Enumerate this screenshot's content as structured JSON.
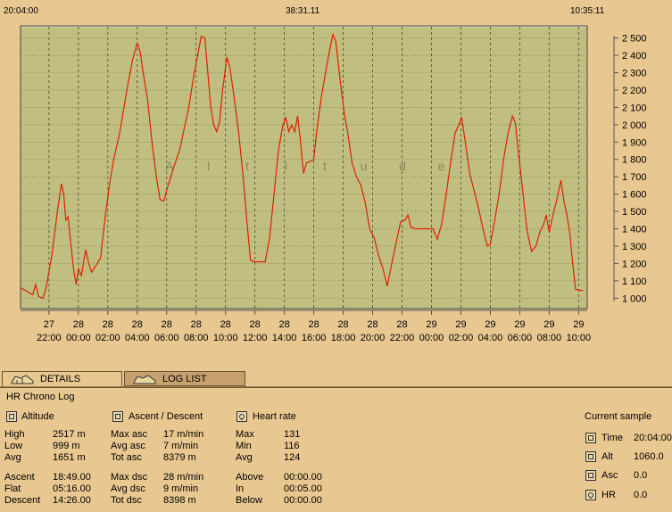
{
  "top_times": {
    "left": "20:04:00",
    "center": "38:31.11",
    "right": "10:35:11"
  },
  "chart_data": {
    "type": "line",
    "title": "Altitude",
    "y_ticks": [
      1000,
      1100,
      1200,
      1300,
      1400,
      1500,
      1600,
      1700,
      1800,
      1900,
      2000,
      2100,
      2200,
      2300,
      2400,
      2500
    ],
    "y_tick_labels": [
      "1 000",
      "1 100",
      "1 200",
      "1 300",
      "1 400",
      "1 500",
      "1 600",
      "1 700",
      "1 800",
      "1 900",
      "2 000",
      "2 100",
      "2 200",
      "2 300",
      "2 400",
      "2 500"
    ],
    "ylim": [
      940,
      2570
    ],
    "xlim": [
      21.75,
      10.58
    ],
    "x_ticks": [
      {
        "t": 22,
        "day": "27",
        "time": "22:00"
      },
      {
        "t": 24,
        "day": "28",
        "time": "00:00"
      },
      {
        "t": 26,
        "day": "28",
        "time": "02:00"
      },
      {
        "t": 28,
        "day": "28",
        "time": "04:00"
      },
      {
        "t": 30,
        "day": "28",
        "time": "06:00"
      },
      {
        "t": 32,
        "day": "28",
        "time": "08:00"
      },
      {
        "t": 34,
        "day": "28",
        "time": "10:00"
      },
      {
        "t": 36,
        "day": "28",
        "time": "12:00"
      },
      {
        "t": 38,
        "day": "28",
        "time": "14:00"
      },
      {
        "t": 40,
        "day": "28",
        "time": "16:00"
      },
      {
        "t": 42,
        "day": "28",
        "time": "18:00"
      },
      {
        "t": 44,
        "day": "28",
        "time": "20:00"
      },
      {
        "t": 46,
        "day": "28",
        "time": "22:00"
      },
      {
        "t": 48,
        "day": "29",
        "time": "00:00"
      },
      {
        "t": 50,
        "day": "29",
        "time": "02:00"
      },
      {
        "t": 52,
        "day": "29",
        "time": "04:00"
      },
      {
        "t": 54,
        "day": "29",
        "time": "06:00"
      },
      {
        "t": 56,
        "day": "29",
        "time": "08:00"
      },
      {
        "t": 58,
        "day": "29",
        "time": "10:00"
      }
    ],
    "series": [
      {
        "name": "Altitude",
        "color": "#e02000",
        "points": [
          [
            20.07,
            1060
          ],
          [
            20.5,
            1040
          ],
          [
            20.9,
            1020
          ],
          [
            21.1,
            1080
          ],
          [
            21.3,
            1010
          ],
          [
            21.6,
            1000
          ],
          [
            21.8,
            1060
          ],
          [
            22.2,
            1250
          ],
          [
            22.6,
            1520
          ],
          [
            22.85,
            1660
          ],
          [
            23.0,
            1600
          ],
          [
            23.15,
            1450
          ],
          [
            23.3,
            1470
          ],
          [
            23.5,
            1300
          ],
          [
            23.7,
            1150
          ],
          [
            23.85,
            1080
          ],
          [
            24.0,
            1170
          ],
          [
            24.2,
            1130
          ],
          [
            24.5,
            1280
          ],
          [
            24.7,
            1200
          ],
          [
            24.9,
            1150
          ],
          [
            25.2,
            1190
          ],
          [
            25.5,
            1230
          ],
          [
            25.8,
            1450
          ],
          [
            26.1,
            1650
          ],
          [
            26.4,
            1800
          ],
          [
            26.8,
            1950
          ],
          [
            27.1,
            2100
          ],
          [
            27.4,
            2250
          ],
          [
            27.7,
            2380
          ],
          [
            28.0,
            2470
          ],
          [
            28.2,
            2420
          ],
          [
            28.4,
            2300
          ],
          [
            28.7,
            2150
          ],
          [
            29.0,
            1900
          ],
          [
            29.3,
            1700
          ],
          [
            29.55,
            1570
          ],
          [
            29.8,
            1560
          ],
          [
            30.1,
            1650
          ],
          [
            30.5,
            1760
          ],
          [
            30.9,
            1860
          ],
          [
            31.2,
            1980
          ],
          [
            31.5,
            2100
          ],
          [
            31.8,
            2260
          ],
          [
            32.1,
            2400
          ],
          [
            32.35,
            2510
          ],
          [
            32.6,
            2500
          ],
          [
            32.8,
            2300
          ],
          [
            33.0,
            2100
          ],
          [
            33.2,
            2000
          ],
          [
            33.4,
            1960
          ],
          [
            33.6,
            2020
          ],
          [
            33.8,
            2200
          ],
          [
            34.1,
            2390
          ],
          [
            34.3,
            2330
          ],
          [
            34.6,
            2150
          ],
          [
            34.9,
            1950
          ],
          [
            35.2,
            1700
          ],
          [
            35.5,
            1400
          ],
          [
            35.7,
            1220
          ],
          [
            35.9,
            1210
          ],
          [
            36.3,
            1210
          ],
          [
            36.7,
            1210
          ],
          [
            37.0,
            1350
          ],
          [
            37.3,
            1600
          ],
          [
            37.6,
            1850
          ],
          [
            37.9,
            2000
          ],
          [
            38.1,
            2040
          ],
          [
            38.3,
            1960
          ],
          [
            38.5,
            2000
          ],
          [
            38.7,
            1960
          ],
          [
            38.9,
            2050
          ],
          [
            39.1,
            1900
          ],
          [
            39.3,
            1720
          ],
          [
            39.5,
            1780
          ],
          [
            39.8,
            1790
          ],
          [
            40.0,
            1800
          ],
          [
            40.2,
            1960
          ],
          [
            40.5,
            2150
          ],
          [
            40.8,
            2300
          ],
          [
            41.1,
            2440
          ],
          [
            41.3,
            2520
          ],
          [
            41.5,
            2480
          ],
          [
            41.8,
            2250
          ],
          [
            42.1,
            2050
          ],
          [
            42.3,
            1960
          ],
          [
            42.6,
            1780
          ],
          [
            42.9,
            1700
          ],
          [
            43.2,
            1650
          ],
          [
            43.5,
            1550
          ],
          [
            43.8,
            1400
          ],
          [
            44.1,
            1350
          ],
          [
            44.4,
            1250
          ],
          [
            44.7,
            1170
          ],
          [
            45.0,
            1070
          ],
          [
            45.3,
            1200
          ],
          [
            45.6,
            1320
          ],
          [
            45.9,
            1440
          ],
          [
            46.2,
            1450
          ],
          [
            46.4,
            1480
          ],
          [
            46.6,
            1410
          ],
          [
            46.9,
            1400
          ],
          [
            47.3,
            1400
          ],
          [
            47.7,
            1400
          ],
          [
            48.1,
            1400
          ],
          [
            48.4,
            1340
          ],
          [
            48.7,
            1430
          ],
          [
            49.0,
            1600
          ],
          [
            49.3,
            1780
          ],
          [
            49.6,
            1950
          ],
          [
            49.85,
            2000
          ],
          [
            50.05,
            2040
          ],
          [
            50.3,
            1900
          ],
          [
            50.6,
            1720
          ],
          [
            50.9,
            1620
          ],
          [
            51.2,
            1520
          ],
          [
            51.5,
            1400
          ],
          [
            51.8,
            1300
          ],
          [
            52.0,
            1310
          ],
          [
            52.3,
            1450
          ],
          [
            52.6,
            1600
          ],
          [
            52.9,
            1800
          ],
          [
            53.2,
            1950
          ],
          [
            53.5,
            2050
          ],
          [
            53.7,
            2010
          ],
          [
            53.9,
            1850
          ],
          [
            54.2,
            1620
          ],
          [
            54.5,
            1390
          ],
          [
            54.8,
            1270
          ],
          [
            55.1,
            1300
          ],
          [
            55.4,
            1390
          ],
          [
            55.6,
            1420
          ],
          [
            55.8,
            1480
          ],
          [
            56.0,
            1380
          ],
          [
            56.2,
            1460
          ],
          [
            56.5,
            1560
          ],
          [
            56.8,
            1680
          ],
          [
            57.0,
            1560
          ],
          [
            57.2,
            1480
          ],
          [
            57.4,
            1380
          ],
          [
            57.6,
            1200
          ],
          [
            57.8,
            1050
          ],
          [
            58.2,
            1045
          ],
          [
            58.3,
            1045
          ]
        ]
      }
    ],
    "watermark_letters": [
      "A",
      "l",
      "t",
      "i",
      "t",
      "u",
      "d",
      "e"
    ],
    "grid": true
  },
  "tabs": {
    "details": "DETAILS",
    "loglist": "LOG LIST"
  },
  "log_title": "HR Chrono Log",
  "altitude": {
    "title": "Altitude",
    "rows": [
      {
        "k": "High",
        "v": "2517 m"
      },
      {
        "k": "Low",
        "v": "999 m"
      },
      {
        "k": "Avg",
        "v": "1651 m"
      },
      {
        "k": "Ascent",
        "v": "18:49.00"
      },
      {
        "k": "Flat",
        "v": "05:16.00"
      },
      {
        "k": "Descent",
        "v": "14:26.00"
      }
    ]
  },
  "ascdesc": {
    "title": "Ascent / Descent",
    "rows": [
      {
        "k": "Max asc",
        "v": "17 m/min"
      },
      {
        "k": "Avg asc",
        "v": "7 m/min"
      },
      {
        "k": "Tot asc",
        "v": "8379 m"
      },
      {
        "k": "Max dsc",
        "v": "28 m/min"
      },
      {
        "k": "Avg dsc",
        "v": "9 m/min"
      },
      {
        "k": "Tot dsc",
        "v": "8398 m"
      }
    ]
  },
  "heartrate": {
    "title": "Heart rate",
    "rows": [
      {
        "k": "Max",
        "v": "131"
      },
      {
        "k": "Min",
        "v": "116"
      },
      {
        "k": "Avg",
        "v": "124"
      },
      {
        "k": "Above",
        "v": "00:00.00"
      },
      {
        "k": "In",
        "v": "00:05.00"
      },
      {
        "k": "Below",
        "v": "00:00.00"
      }
    ]
  },
  "current": {
    "title": "Current sample",
    "rows": [
      {
        "k": "Time",
        "v": "20:04:00"
      },
      {
        "k": "Alt",
        "v": "1060.0"
      },
      {
        "k": "Asc",
        "v": "0.0"
      },
      {
        "k": "HR",
        "v": "0.0"
      }
    ]
  }
}
